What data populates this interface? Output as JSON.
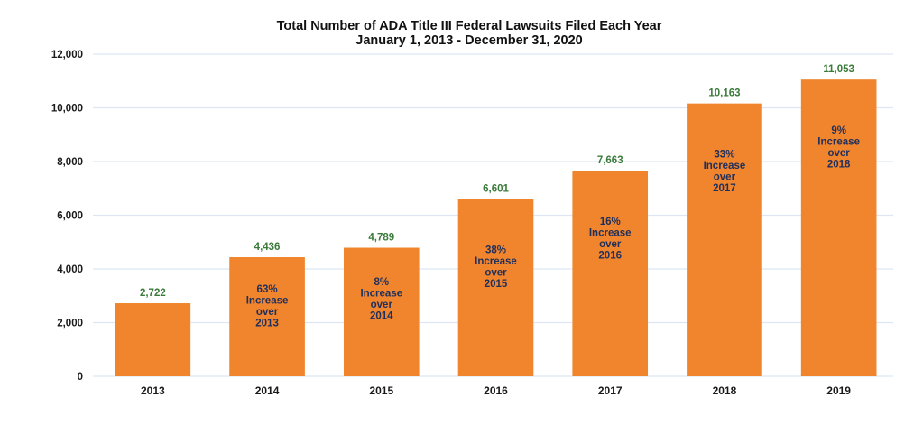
{
  "chart_data": {
    "type": "bar",
    "title": "Total Number of ADA Title III Federal Lawsuits Filed Each Year",
    "subtitle": "January 1, 2013 - December 31, 2020",
    "xlabel": "",
    "ylabel": "",
    "categories": [
      "2013",
      "2014",
      "2015",
      "2016",
      "2017",
      "2018",
      "2019"
    ],
    "values": [
      2722,
      4436,
      4789,
      6601,
      7663,
      10163,
      11053
    ],
    "value_labels": [
      "2,722",
      "4,436",
      "4,789",
      "6,601",
      "7,663",
      "10,163",
      "11,053"
    ],
    "annotations": [
      null,
      [
        "63%",
        "Increase",
        "over",
        "2013"
      ],
      [
        "8%",
        "Increase",
        "over",
        "2014"
      ],
      [
        "38%",
        "Increase",
        "over",
        "2015"
      ],
      [
        "16%",
        "Increase",
        "over",
        "2016"
      ],
      [
        "33%",
        "Increase",
        "over",
        "2017"
      ],
      [
        "9%",
        "Increase",
        "over",
        "2018"
      ]
    ],
    "ylim": [
      0,
      12000
    ],
    "yticks": [
      0,
      2000,
      4000,
      6000,
      8000,
      10000,
      12000
    ],
    "ytick_labels": [
      "0",
      "2,000",
      "4,000",
      "6,000",
      "8,000",
      "10,000",
      "12,000"
    ],
    "grid": true,
    "legend": "none",
    "colors": {
      "bar": "#f0852d",
      "value_label": "#3a7a3a",
      "annotation": "#1f2f5c",
      "grid": "#dde6f2",
      "text": "#1a1a1a"
    }
  }
}
